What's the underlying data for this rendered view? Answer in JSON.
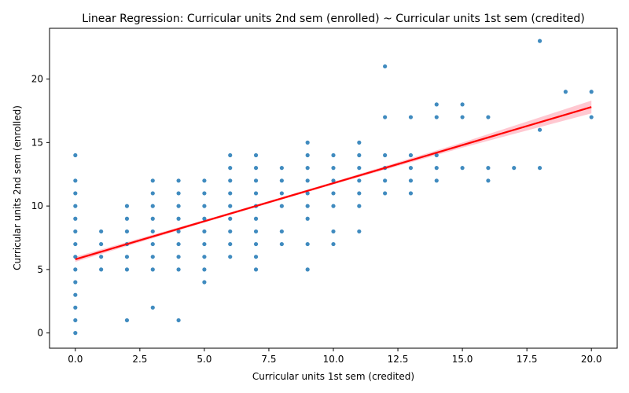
{
  "chart_data": {
    "type": "scatter",
    "title": "Linear Regression: Curricular units 2nd sem (enrolled) ~ Curricular units 1st sem (credited)",
    "xlabel": "Curricular units 1st sem (credited)",
    "ylabel": "Curricular units 2nd sem (enrolled)",
    "xlim": [
      -1,
      21
    ],
    "ylim": [
      -1.2,
      24
    ],
    "x_ticks": [
      0,
      2.5,
      5,
      7.5,
      10,
      12.5,
      15,
      17.5,
      20
    ],
    "x_tick_labels": [
      "0.0",
      "2.5",
      "5.0",
      "7.5",
      "10.0",
      "12.5",
      "15.0",
      "17.5",
      "20.0"
    ],
    "y_ticks": [
      0,
      5,
      10,
      15,
      20
    ],
    "y_tick_labels": [
      "0",
      "5",
      "10",
      "15",
      "20"
    ],
    "grid": false,
    "legend": "none",
    "colors": {
      "points": "#1f77b4",
      "fit_line": "#ff0000",
      "ci_band": "#ffb6c1"
    },
    "points": [
      [
        0,
        0
      ],
      [
        0,
        1
      ],
      [
        0,
        2
      ],
      [
        0,
        3
      ],
      [
        0,
        4
      ],
      [
        0,
        5
      ],
      [
        0,
        6
      ],
      [
        0,
        7
      ],
      [
        0,
        8
      ],
      [
        0,
        9
      ],
      [
        0,
        10
      ],
      [
        0,
        11
      ],
      [
        0,
        12
      ],
      [
        0,
        14
      ],
      [
        1,
        5
      ],
      [
        1,
        6
      ],
      [
        1,
        7
      ],
      [
        1,
        8
      ],
      [
        2,
        1
      ],
      [
        2,
        5
      ],
      [
        2,
        6
      ],
      [
        2,
        7
      ],
      [
        2,
        8
      ],
      [
        2,
        9
      ],
      [
        2,
        10
      ],
      [
        3,
        2
      ],
      [
        3,
        5
      ],
      [
        3,
        6
      ],
      [
        3,
        7
      ],
      [
        3,
        8
      ],
      [
        3,
        9
      ],
      [
        3,
        10
      ],
      [
        3,
        11
      ],
      [
        3,
        12
      ],
      [
        4,
        1
      ],
      [
        4,
        5
      ],
      [
        4,
        6
      ],
      [
        4,
        7
      ],
      [
        4,
        8
      ],
      [
        4,
        9
      ],
      [
        4,
        10
      ],
      [
        4,
        11
      ],
      [
        4,
        12
      ],
      [
        5,
        4
      ],
      [
        5,
        5
      ],
      [
        5,
        6
      ],
      [
        5,
        7
      ],
      [
        5,
        8
      ],
      [
        5,
        9
      ],
      [
        5,
        10
      ],
      [
        5,
        11
      ],
      [
        5,
        12
      ],
      [
        6,
        6
      ],
      [
        6,
        7
      ],
      [
        6,
        8
      ],
      [
        6,
        9
      ],
      [
        6,
        10
      ],
      [
        6,
        11
      ],
      [
        6,
        12
      ],
      [
        6,
        13
      ],
      [
        6,
        14
      ],
      [
        7,
        5
      ],
      [
        7,
        6
      ],
      [
        7,
        7
      ],
      [
        7,
        8
      ],
      [
        7,
        9
      ],
      [
        7,
        10
      ],
      [
        7,
        11
      ],
      [
        7,
        12
      ],
      [
        7,
        13
      ],
      [
        7,
        14
      ],
      [
        8,
        7
      ],
      [
        8,
        8
      ],
      [
        8,
        10
      ],
      [
        8,
        11
      ],
      [
        8,
        12
      ],
      [
        8,
        13
      ],
      [
        9,
        5
      ],
      [
        9,
        7
      ],
      [
        9,
        9
      ],
      [
        9,
        10
      ],
      [
        9,
        11
      ],
      [
        9,
        12
      ],
      [
        9,
        13
      ],
      [
        9,
        14
      ],
      [
        9,
        15
      ],
      [
        10,
        7
      ],
      [
        10,
        8
      ],
      [
        10,
        10
      ],
      [
        10,
        11
      ],
      [
        10,
        12
      ],
      [
        10,
        13
      ],
      [
        10,
        14
      ],
      [
        11,
        8
      ],
      [
        11,
        10
      ],
      [
        11,
        11
      ],
      [
        11,
        12
      ],
      [
        11,
        13
      ],
      [
        11,
        14
      ],
      [
        11,
        15
      ],
      [
        12,
        11
      ],
      [
        12,
        12
      ],
      [
        12,
        13
      ],
      [
        12,
        14
      ],
      [
        12,
        17
      ],
      [
        12,
        21
      ],
      [
        13,
        11
      ],
      [
        13,
        12
      ],
      [
        13,
        13
      ],
      [
        13,
        14
      ],
      [
        13,
        17
      ],
      [
        14,
        12
      ],
      [
        14,
        13
      ],
      [
        14,
        14
      ],
      [
        14,
        17
      ],
      [
        14,
        18
      ],
      [
        15,
        13
      ],
      [
        15,
        17
      ],
      [
        15,
        18
      ],
      [
        16,
        12
      ],
      [
        16,
        13
      ],
      [
        16,
        17
      ],
      [
        17,
        13
      ],
      [
        18,
        13
      ],
      [
        18,
        16
      ],
      [
        18,
        23
      ],
      [
        19,
        19
      ],
      [
        20,
        17
      ],
      [
        20,
        19
      ]
    ],
    "fit_line": {
      "x": [
        0,
        20
      ],
      "y": [
        5.8,
        17.8
      ]
    },
    "ci_band": {
      "x": [
        0,
        5,
        10,
        15,
        20
      ],
      "lower": [
        5.6,
        8.7,
        11.7,
        14.6,
        17.3
      ],
      "upper": [
        6.0,
        8.9,
        11.9,
        15.0,
        18.3
      ]
    }
  }
}
